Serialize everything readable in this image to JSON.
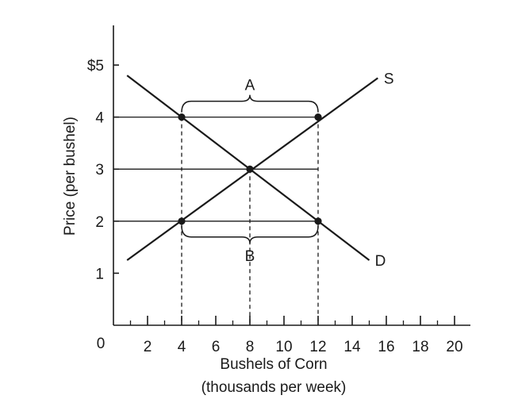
{
  "chart_data": {
    "type": "line",
    "xlabel": "Bushels of Corn",
    "xlabel_sub": "(thousands per week)",
    "ylabel": "Price (per bushel)",
    "xlim": [
      0,
      20
    ],
    "ylim": [
      0,
      5.5
    ],
    "origin_label": "0",
    "x_ticks": [
      {
        "value": 2,
        "label": "2"
      },
      {
        "value": 4,
        "label": "4"
      },
      {
        "value": 6,
        "label": "6"
      },
      {
        "value": 8,
        "label": "8"
      },
      {
        "value": 10,
        "label": "10"
      },
      {
        "value": 12,
        "label": "12"
      },
      {
        "value": 14,
        "label": "14"
      },
      {
        "value": 16,
        "label": "16"
      },
      {
        "value": 18,
        "label": "18"
      },
      {
        "value": 20,
        "label": "20"
      }
    ],
    "x_minor_ticks": [
      1,
      3,
      5,
      7,
      9,
      11,
      13,
      15,
      17,
      19
    ],
    "y_ticks": [
      {
        "value": 1,
        "label": "1"
      },
      {
        "value": 2,
        "label": "2"
      },
      {
        "value": 3,
        "label": "3"
      },
      {
        "value": 4,
        "label": "4"
      },
      {
        "value": 5,
        "label": "$5"
      }
    ],
    "grid": false,
    "series": [
      {
        "name": "S",
        "x": [
          0.8,
          15.5
        ],
        "y": [
          1.25,
          4.75
        ]
      },
      {
        "name": "D",
        "x": [
          0.8,
          15.0
        ],
        "y": [
          4.8,
          1.25
        ]
      }
    ],
    "points": [
      {
        "x": 4,
        "y": 4
      },
      {
        "x": 12,
        "y": 4
      },
      {
        "x": 8,
        "y": 3
      },
      {
        "x": 4,
        "y": 2
      },
      {
        "x": 12,
        "y": 2
      }
    ],
    "price_lines": [
      4,
      3,
      2
    ],
    "dashed_verticals": [
      4,
      8,
      12
    ],
    "braces": [
      {
        "label": "A",
        "x_from": 4,
        "x_to": 12,
        "price": 4,
        "direction": "up"
      },
      {
        "label": "B",
        "x_from": 4,
        "x_to": 12,
        "price": 2,
        "direction": "down"
      }
    ],
    "color": "#1a1a1a"
  }
}
